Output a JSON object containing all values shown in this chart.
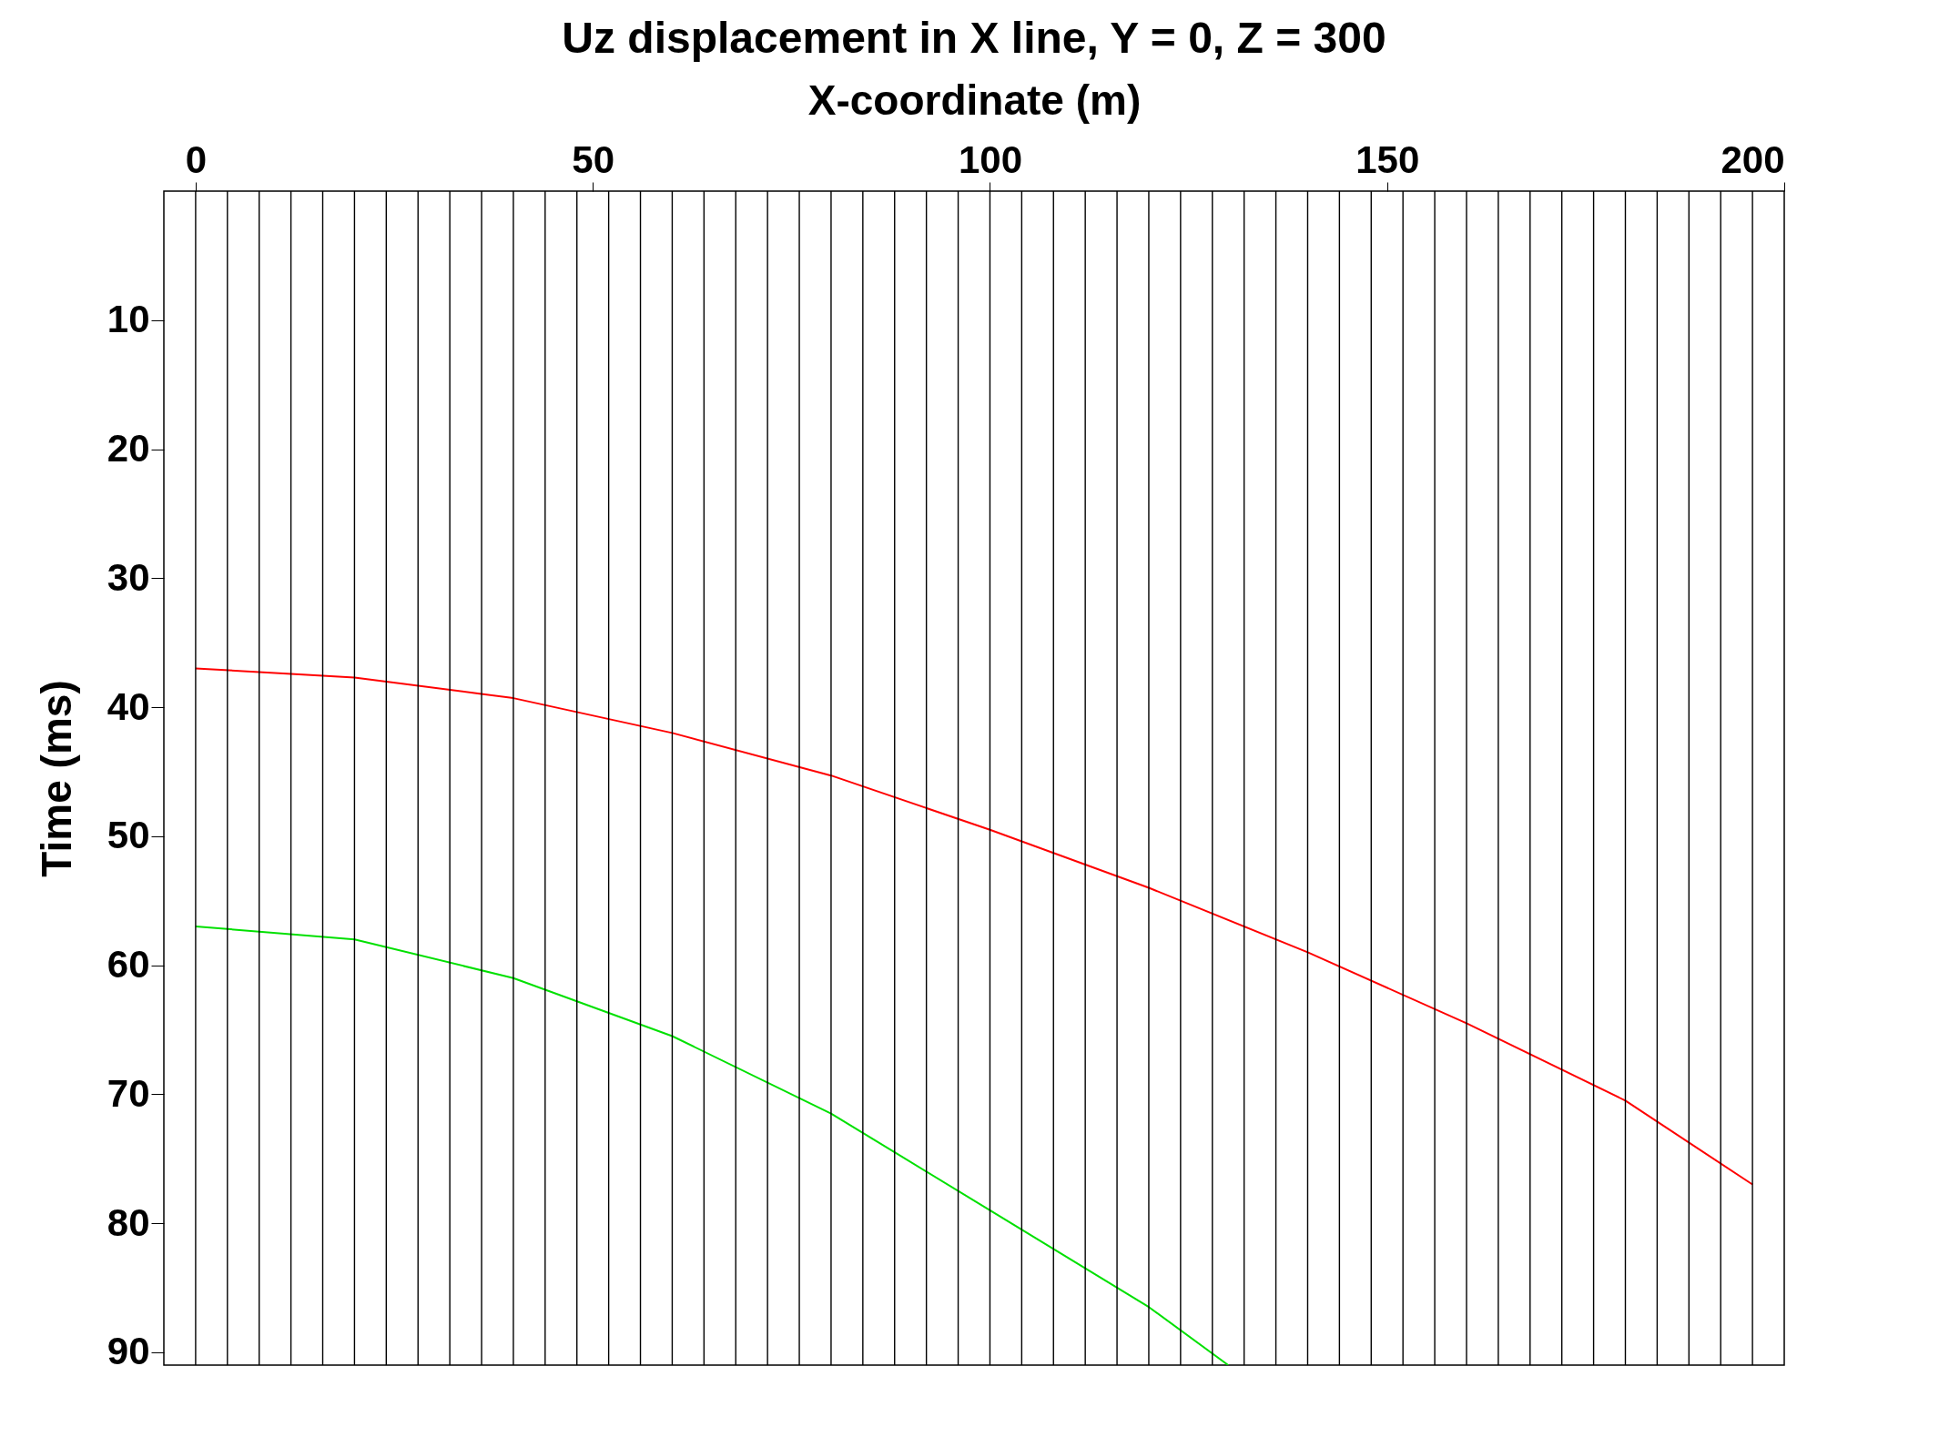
{
  "chart_data": {
    "type": "line",
    "title": "Uz displacement in X line, Y = 0, Z = 300",
    "xlabel": "X-coordinate (m)",
    "ylabel": "Time (ms)",
    "xlim": [
      -4,
      200
    ],
    "xticks": [
      0,
      50,
      100,
      150,
      200
    ],
    "ylim": [
      91,
      0
    ],
    "yticks": [
      10,
      20,
      30,
      40,
      50,
      60,
      70,
      80,
      90
    ],
    "grid": false,
    "line_style": "solid",
    "marker": "none",
    "series": [
      {
        "color": "#ff0000",
        "x": [
          0,
          20,
          40,
          60,
          80,
          100,
          120,
          140,
          160,
          180,
          196
        ],
        "values": [
          37,
          37.7,
          39.3,
          42,
          45.3,
          49.5,
          54,
          59,
          64.5,
          70.5,
          77
        ]
      },
      {
        "color": "#00e000",
        "x": [
          0,
          20,
          40,
          60,
          80,
          100,
          120,
          130
        ],
        "values": [
          57,
          58,
          61,
          65.5,
          71.5,
          79,
          86.5,
          91
        ]
      }
    ],
    "ref_lines": [
      {
        "axis": "x",
        "value": 0,
        "color": "#000000"
      },
      {
        "axis": "x",
        "value": 4,
        "color": "#000000"
      },
      {
        "axis": "x",
        "value": 8,
        "color": "#000000"
      },
      {
        "axis": "x",
        "value": 12,
        "color": "#000000"
      },
      {
        "axis": "x",
        "value": 16,
        "color": "#000000"
      },
      {
        "axis": "x",
        "value": 20,
        "color": "#000000"
      },
      {
        "axis": "x",
        "value": 24,
        "color": "#000000"
      },
      {
        "axis": "x",
        "value": 28,
        "color": "#000000"
      },
      {
        "axis": "x",
        "value": 32,
        "color": "#000000"
      },
      {
        "axis": "x",
        "value": 36,
        "color": "#000000"
      },
      {
        "axis": "x",
        "value": 40,
        "color": "#000000"
      },
      {
        "axis": "x",
        "value": 44,
        "color": "#000000"
      },
      {
        "axis": "x",
        "value": 48,
        "color": "#000000"
      },
      {
        "axis": "x",
        "value": 52,
        "color": "#000000"
      },
      {
        "axis": "x",
        "value": 56,
        "color": "#000000"
      },
      {
        "axis": "x",
        "value": 60,
        "color": "#000000"
      },
      {
        "axis": "x",
        "value": 64,
        "color": "#000000"
      },
      {
        "axis": "x",
        "value": 68,
        "color": "#000000"
      },
      {
        "axis": "x",
        "value": 72,
        "color": "#000000"
      },
      {
        "axis": "x",
        "value": 76,
        "color": "#000000"
      },
      {
        "axis": "x",
        "value": 80,
        "color": "#000000"
      },
      {
        "axis": "x",
        "value": 84,
        "color": "#000000"
      },
      {
        "axis": "x",
        "value": 88,
        "color": "#000000"
      },
      {
        "axis": "x",
        "value": 92,
        "color": "#000000"
      },
      {
        "axis": "x",
        "value": 96,
        "color": "#000000"
      },
      {
        "axis": "x",
        "value": 100,
        "color": "#000000"
      },
      {
        "axis": "x",
        "value": 104,
        "color": "#000000"
      },
      {
        "axis": "x",
        "value": 108,
        "color": "#000000"
      },
      {
        "axis": "x",
        "value": 112,
        "color": "#000000"
      },
      {
        "axis": "x",
        "value": 116,
        "color": "#000000"
      },
      {
        "axis": "x",
        "value": 120,
        "color": "#000000"
      },
      {
        "axis": "x",
        "value": 124,
        "color": "#000000"
      },
      {
        "axis": "x",
        "value": 128,
        "color": "#000000"
      },
      {
        "axis": "x",
        "value": 132,
        "color": "#000000"
      },
      {
        "axis": "x",
        "value": 136,
        "color": "#000000"
      },
      {
        "axis": "x",
        "value": 140,
        "color": "#000000"
      },
      {
        "axis": "x",
        "value": 144,
        "color": "#000000"
      },
      {
        "axis": "x",
        "value": 148,
        "color": "#000000"
      },
      {
        "axis": "x",
        "value": 152,
        "color": "#000000"
      },
      {
        "axis": "x",
        "value": 156,
        "color": "#000000"
      },
      {
        "axis": "x",
        "value": 160,
        "color": "#000000"
      },
      {
        "axis": "x",
        "value": 164,
        "color": "#000000"
      },
      {
        "axis": "x",
        "value": 168,
        "color": "#000000"
      },
      {
        "axis": "x",
        "value": 172,
        "color": "#000000"
      },
      {
        "axis": "x",
        "value": 176,
        "color": "#000000"
      },
      {
        "axis": "x",
        "value": 180,
        "color": "#000000"
      },
      {
        "axis": "x",
        "value": 184,
        "color": "#000000"
      },
      {
        "axis": "x",
        "value": 188,
        "color": "#000000"
      },
      {
        "axis": "x",
        "value": 192,
        "color": "#000000"
      },
      {
        "axis": "x",
        "value": 196,
        "color": "#000000"
      }
    ]
  }
}
